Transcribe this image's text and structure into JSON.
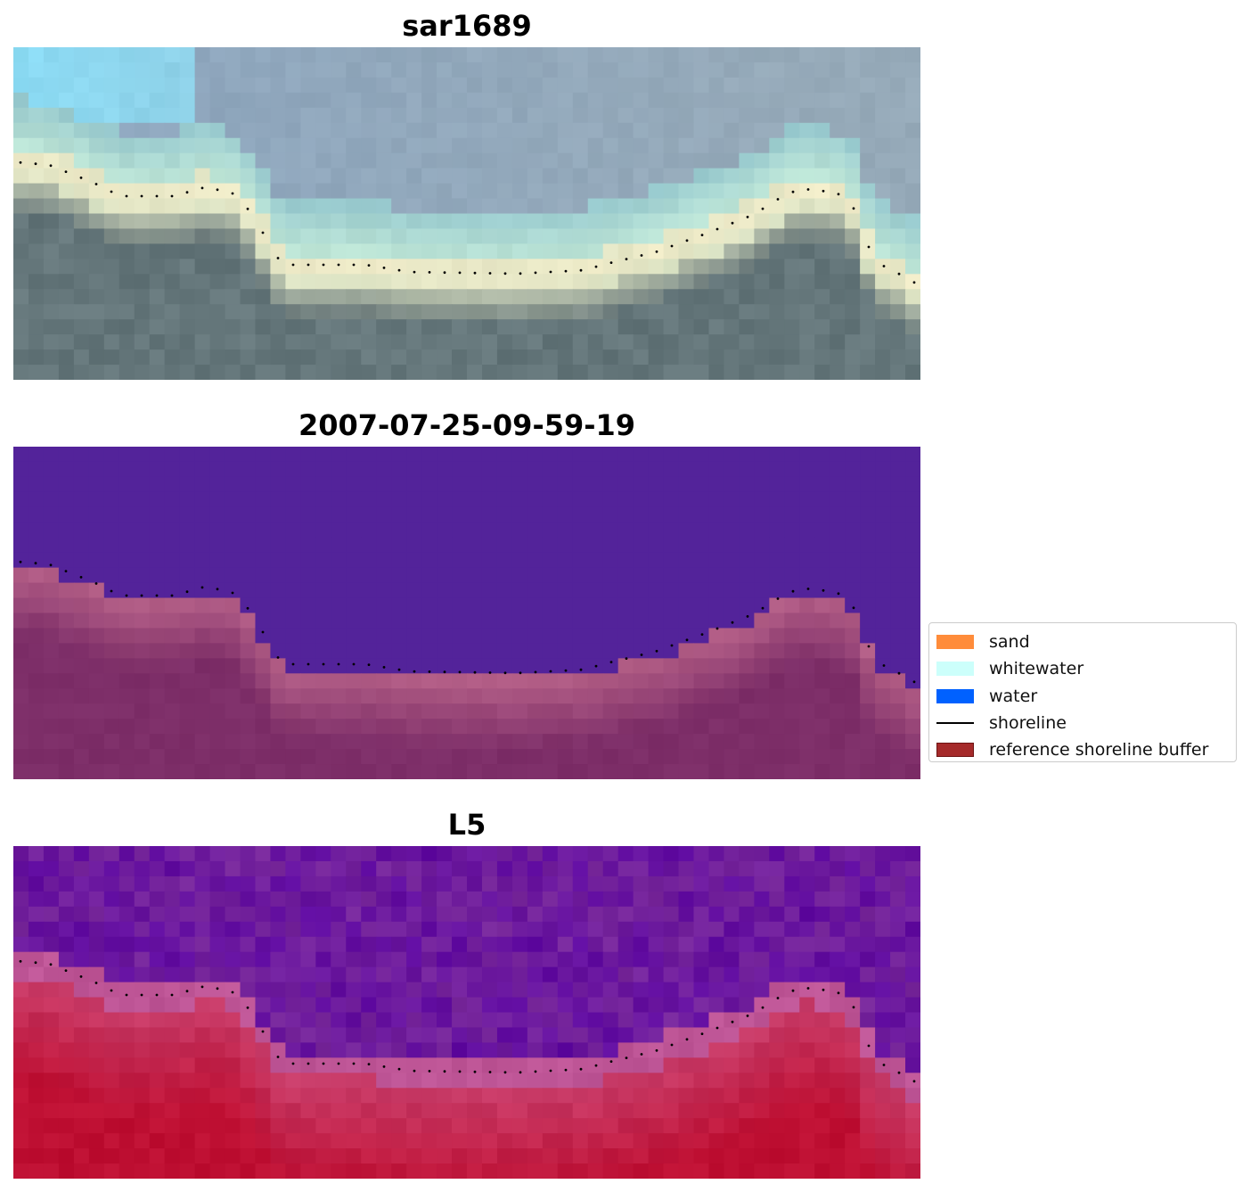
{
  "panels": [
    {
      "title": "sar1689",
      "kind": "rgb"
    },
    {
      "title": "2007-07-25-09-59-19",
      "kind": "classified"
    },
    {
      "title": "L5",
      "kind": "index"
    }
  ],
  "legend": {
    "items": [
      {
        "label": "sand",
        "color": "#ff8c3a",
        "type": "patch"
      },
      {
        "label": "whitewater",
        "color": "#ccfffb",
        "type": "patch"
      },
      {
        "label": "water",
        "color": "#0061ff",
        "type": "patch"
      },
      {
        "label": "shoreline",
        "color": "#000000",
        "type": "line"
      },
      {
        "label": "reference shoreline buffer",
        "color": "#a52a2a",
        "type": "patch"
      }
    ]
  },
  "colors": {
    "purple_water": "#53239a",
    "buffer_magenta": "#7d2e68",
    "index_purple": "#6f1fa0",
    "index_red": "#c5234f"
  }
}
